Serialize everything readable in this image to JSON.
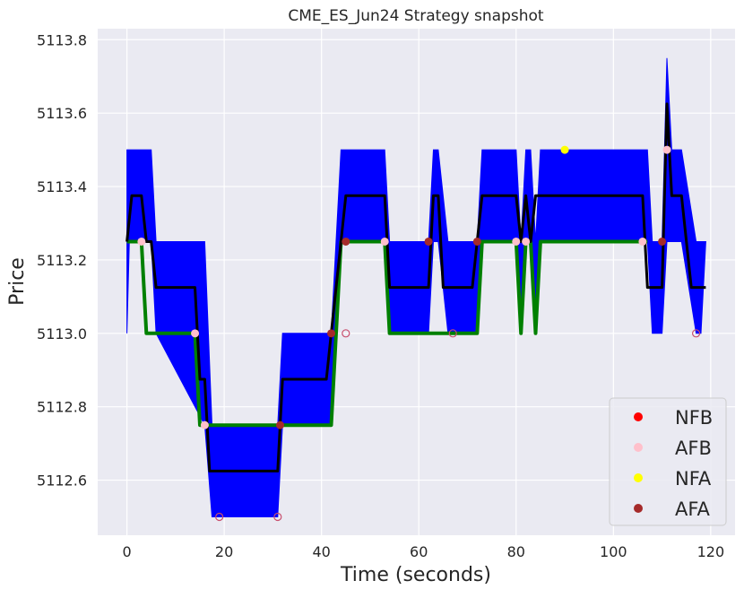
{
  "chart_data": {
    "type": "line",
    "title": "CME_ES_Jun24 Strategy snapshot",
    "xlabel": "Time (seconds)",
    "ylabel": "Price",
    "xlim": [
      -6,
      125
    ],
    "ylim": [
      5112.45,
      5113.83
    ],
    "grid": true,
    "legend_position": "lower-right",
    "xticks": [
      0,
      20,
      40,
      60,
      80,
      100,
      120
    ],
    "xtick_labels": [
      "0",
      "20",
      "40",
      "60",
      "80",
      "100",
      "120"
    ],
    "yticks": [
      5112.6,
      5112.8,
      5113.0,
      5113.2,
      5113.4,
      5113.6,
      5113.8
    ],
    "ytick_labels": [
      "5112.6",
      "5112.8",
      "5113.0",
      "5113.2",
      "5113.4",
      "5113.6",
      "5113.8"
    ],
    "colors": {
      "band": "#0000ff",
      "bid": "#008000",
      "mid": "#000000",
      "NFB": "#ff0000",
      "AFB": "#ffc0cb",
      "NFA": "#ffff00",
      "AFA": "#a52a2a",
      "plot_bg": "#eaeaf2",
      "grid": "#ffffff"
    },
    "band": {
      "x": [
        0,
        0.5,
        5,
        6,
        16,
        17.5,
        31,
        32,
        42,
        43,
        44,
        53,
        54,
        62,
        63,
        64,
        66,
        72,
        73,
        80,
        81,
        82,
        83,
        84,
        85,
        107,
        108,
        110,
        111,
        112,
        114,
        117,
        118,
        119
      ],
      "low": [
        5113.0,
        5113.25,
        5113.25,
        5113.0,
        5112.75,
        5112.5,
        5112.5,
        5112.75,
        5112.75,
        5113.0,
        5113.25,
        5113.25,
        5113.0,
        5113.0,
        5113.25,
        5113.25,
        5113.0,
        5113.0,
        5113.25,
        5113.25,
        5113.0,
        5113.25,
        5113.25,
        5113.0,
        5113.25,
        5113.25,
        5113.0,
        5113.0,
        5113.25,
        5113.25,
        5113.25,
        5113.0,
        5113.0,
        5113.25
      ],
      "high": [
        5113.5,
        5113.5,
        5113.5,
        5113.25,
        5113.25,
        5112.75,
        5112.75,
        5113.0,
        5113.0,
        5113.25,
        5113.5,
        5113.5,
        5113.25,
        5113.25,
        5113.5,
        5113.5,
        5113.25,
        5113.25,
        5113.5,
        5113.5,
        5113.25,
        5113.5,
        5113.5,
        5113.25,
        5113.5,
        5113.5,
        5113.25,
        5113.25,
        5113.75,
        5113.5,
        5113.5,
        5113.25,
        5113.25,
        5113.25
      ]
    },
    "series": [
      {
        "key": "bid",
        "x": [
          0,
          1,
          3,
          4,
          14,
          15,
          16,
          31,
          32,
          42,
          44,
          53,
          54,
          72,
          73,
          80,
          81,
          82,
          83,
          84,
          85,
          106,
          107
        ],
        "y": [
          5113.25,
          5113.25,
          5113.25,
          5113.0,
          5113.0,
          5112.75,
          5112.75,
          5112.75,
          5112.75,
          5112.75,
          5113.25,
          5113.25,
          5113.0,
          5113.0,
          5113.25,
          5113.25,
          5113.0,
          5113.25,
          5113.25,
          5113.0,
          5113.25,
          5113.25,
          5113.25
        ]
      },
      {
        "key": "mid",
        "x": [
          0,
          1,
          3,
          4,
          5,
          6,
          14,
          15,
          16,
          17,
          31,
          32,
          41,
          42,
          44,
          45,
          53,
          54,
          62,
          63,
          64,
          65,
          71,
          72,
          73,
          80,
          81,
          82,
          83,
          84,
          106,
          107,
          110,
          111,
          112,
          114,
          116,
          117,
          119
        ],
        "y": [
          5113.25,
          5113.375,
          5113.375,
          5113.25,
          5113.25,
          5113.125,
          5113.125,
          5112.875,
          5112.875,
          5112.625,
          5112.625,
          5112.875,
          5112.875,
          5113.0,
          5113.25,
          5113.375,
          5113.375,
          5113.125,
          5113.125,
          5113.375,
          5113.375,
          5113.125,
          5113.125,
          5113.25,
          5113.375,
          5113.375,
          5113.25,
          5113.375,
          5113.25,
          5113.375,
          5113.375,
          5113.125,
          5113.125,
          5113.625,
          5113.375,
          5113.375,
          5113.125,
          5113.125,
          5113.125
        ]
      }
    ],
    "markers": {
      "NFA": [
        {
          "x": 90,
          "y": 5113.5
        }
      ],
      "AFA": [
        {
          "x": 31.5,
          "y": 5112.75
        },
        {
          "x": 42,
          "y": 5113.0
        },
        {
          "x": 45,
          "y": 5113.25
        },
        {
          "x": 62,
          "y": 5113.25
        },
        {
          "x": 72,
          "y": 5113.25
        },
        {
          "x": 110,
          "y": 5113.25
        }
      ],
      "AFB": [
        {
          "x": 3,
          "y": 5113.25
        },
        {
          "x": 14,
          "y": 5113.0
        },
        {
          "x": 16,
          "y": 5112.75
        },
        {
          "x": 53,
          "y": 5113.25
        },
        {
          "x": 80,
          "y": 5113.25
        },
        {
          "x": 82,
          "y": 5113.25
        },
        {
          "x": 106,
          "y": 5113.25
        },
        {
          "x": 111,
          "y": 5113.5
        }
      ],
      "open_circles": [
        {
          "x": 19,
          "y": 5112.5
        },
        {
          "x": 31,
          "y": 5112.5
        },
        {
          "x": 45,
          "y": 5113.0
        },
        {
          "x": 67,
          "y": 5113.0
        },
        {
          "x": 117,
          "y": 5113.0
        }
      ]
    },
    "legend": [
      {
        "label": "NFB",
        "color_key": "NFB"
      },
      {
        "label": "AFB",
        "color_key": "AFB"
      },
      {
        "label": "NFA",
        "color_key": "NFA"
      },
      {
        "label": "AFA",
        "color_key": "AFA"
      }
    ]
  }
}
